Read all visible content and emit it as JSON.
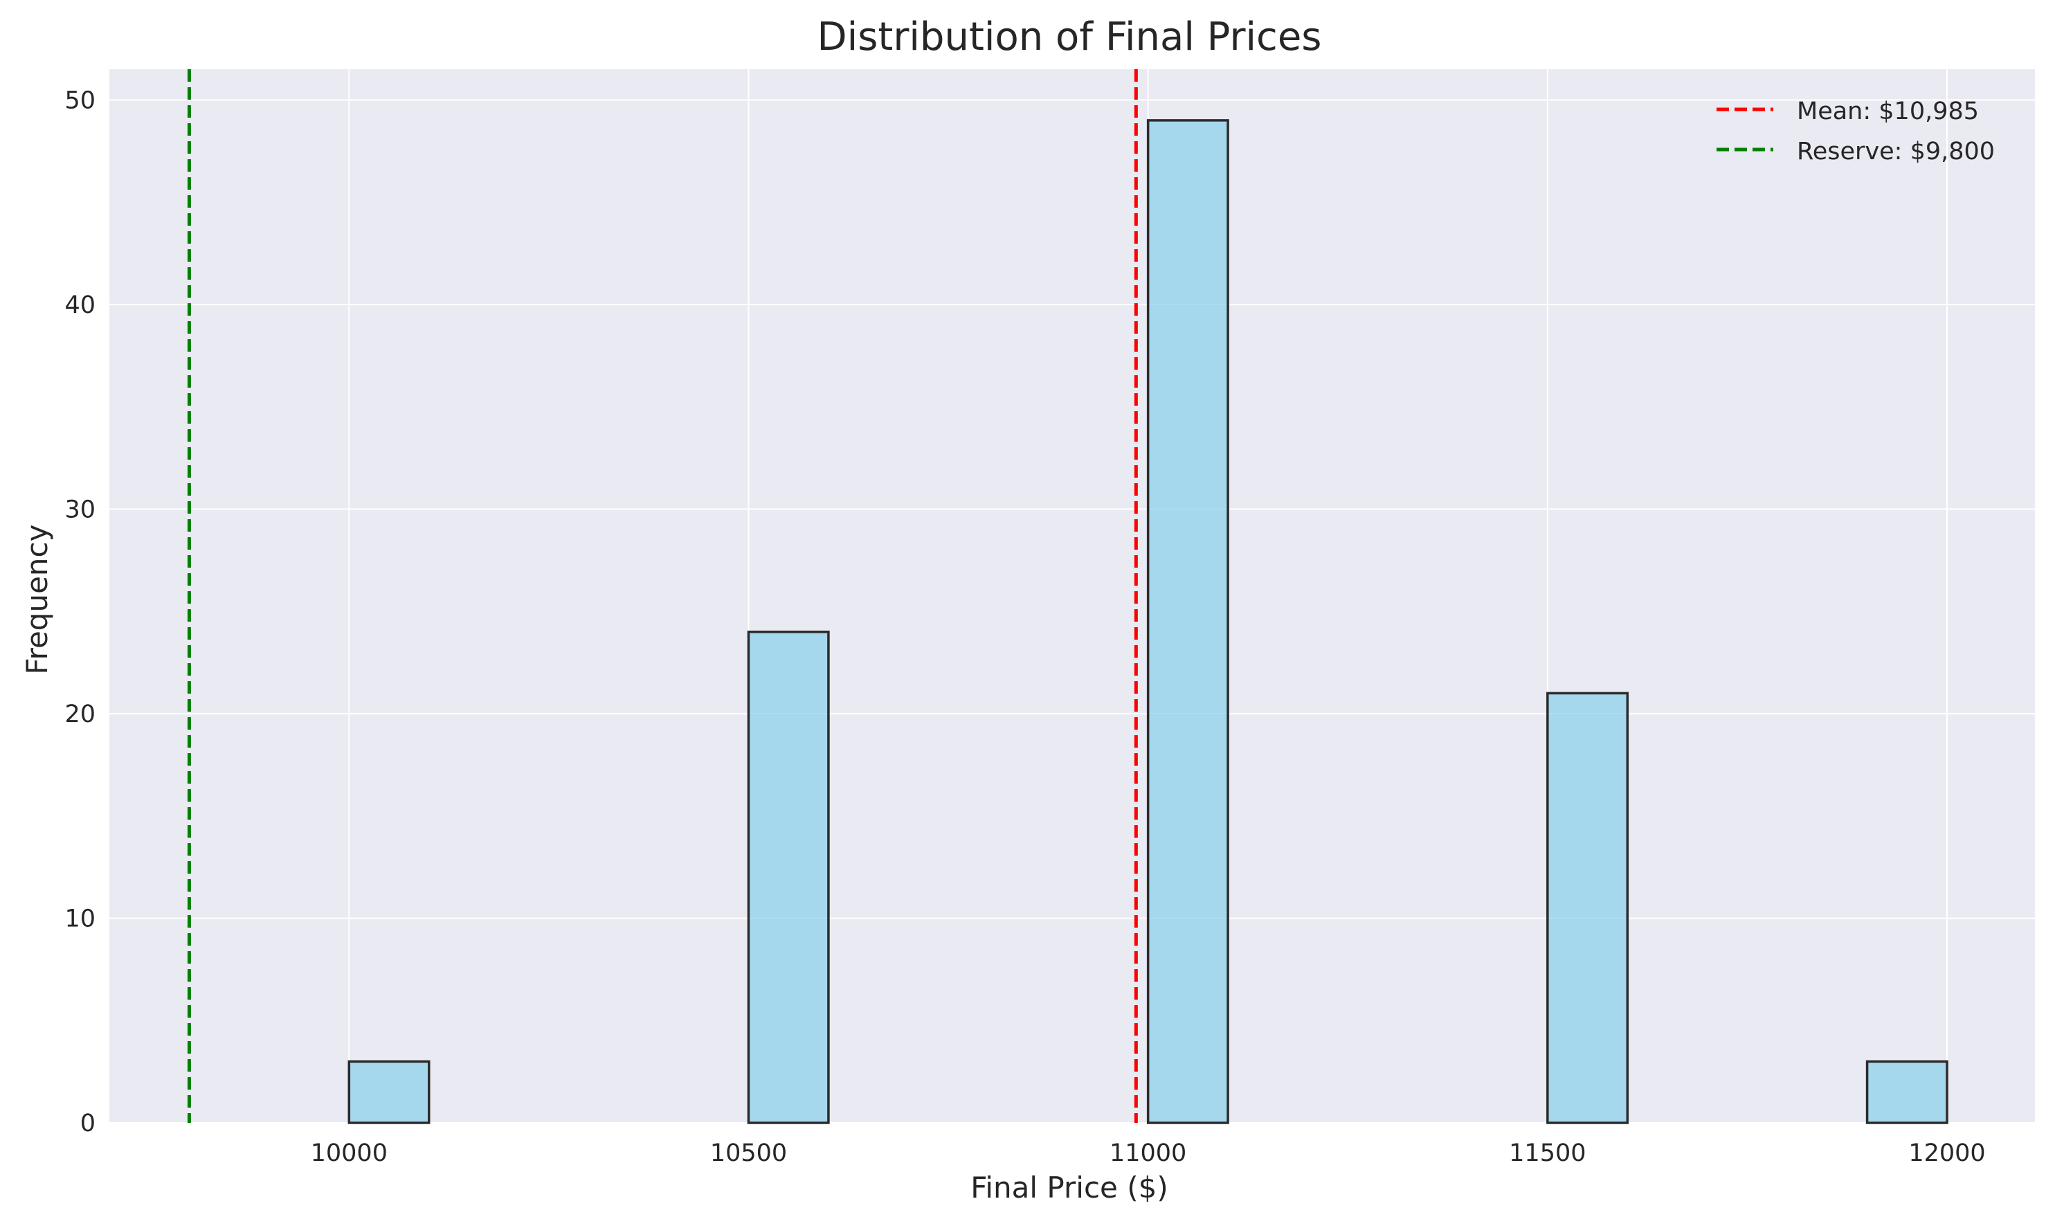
{
  "chart_data": {
    "type": "bar",
    "title": "Distribution of Final Prices",
    "xlabel": "Final Price ($)",
    "ylabel": "Frequency",
    "xlim": [
      9700,
      12110
    ],
    "ylim": [
      0,
      51.5
    ],
    "x_ticks": [
      10000,
      10500,
      11000,
      11500,
      12000
    ],
    "y_ticks": [
      0,
      10,
      20,
      30,
      40,
      50
    ],
    "grid": true,
    "bars": [
      {
        "x0": 10000,
        "x1": 10100,
        "value": 3
      },
      {
        "x0": 10500,
        "x1": 10600,
        "value": 24
      },
      {
        "x0": 11000,
        "x1": 11100,
        "value": 49
      },
      {
        "x0": 11500,
        "x1": 11600,
        "value": 21
      },
      {
        "x0": 11900,
        "x1": 12000,
        "value": 3
      }
    ],
    "reference_lines": [
      {
        "label": "Mean: $10,985",
        "x": 10985,
        "color": "#ff0000"
      },
      {
        "label": "Reserve: $9,800",
        "x": 9800,
        "color": "#008000"
      }
    ],
    "legend_position": "top-right",
    "colors": {
      "bar_fill": "#87ceeb",
      "bar_edge": "#2b2b2b",
      "plot_background": "#eaeaf2",
      "grid": "#ffffff"
    }
  }
}
